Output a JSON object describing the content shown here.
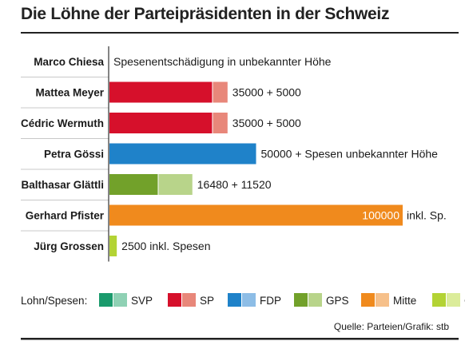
{
  "title": "Die Löhne der Parteipräsidenten in der Schweiz",
  "source": "Quelle: Parteien/Grafik: stb",
  "legend": {
    "label": "Lohn/Spesen:",
    "items": [
      {
        "name": "SVP",
        "lohn_color": "#1a9a6c",
        "spesen_color": "#8fd1b4"
      },
      {
        "name": "SP",
        "lohn_color": "#d6102b",
        "spesen_color": "#e8877a"
      },
      {
        "name": "FDP",
        "lohn_color": "#1f82c9",
        "spesen_color": "#8dbde6"
      },
      {
        "name": "GPS",
        "lohn_color": "#72a12a",
        "spesen_color": "#b8d48a"
      },
      {
        "name": "Mitte",
        "lohn_color": "#f08a1d",
        "spesen_color": "#f6c08a"
      },
      {
        "name": "GLP",
        "lohn_color": "#b3d334",
        "spesen_color": "#dbec9a"
      }
    ]
  },
  "chart_data": {
    "type": "bar",
    "orientation": "horizontal",
    "stacked": true,
    "title": "Die Löhne der Parteipräsidenten in der Schweiz",
    "categories": [
      "Marco Chiesa",
      "Mattea Meyer",
      "Cédric Wermuth",
      "Petra Gössi",
      "Balthasar Glättli",
      "Gerhard Pfister",
      "Jürg Grossen"
    ],
    "parties": [
      "SVP",
      "SP",
      "SP",
      "FDP",
      "GPS",
      "Mitte",
      "GLP"
    ],
    "series": [
      {
        "name": "Lohn",
        "values": [
          0,
          35000,
          35000,
          50000,
          16480,
          100000,
          2500
        ]
      },
      {
        "name": "Spesen",
        "values": [
          0,
          5000,
          5000,
          0,
          11520,
          0,
          0
        ]
      }
    ],
    "value_labels": [
      "Spesenentschädigung in unbekannter Höhe",
      "35000 + 5000",
      "35000 + 5000",
      "50000 + Spesen unbekannter Höhe",
      "16480 + 11520",
      "100000",
      "2500 inkl. Spesen"
    ],
    "inside_label_suffix": "inkl. Sp.",
    "xlim": [
      0,
      100000
    ]
  }
}
